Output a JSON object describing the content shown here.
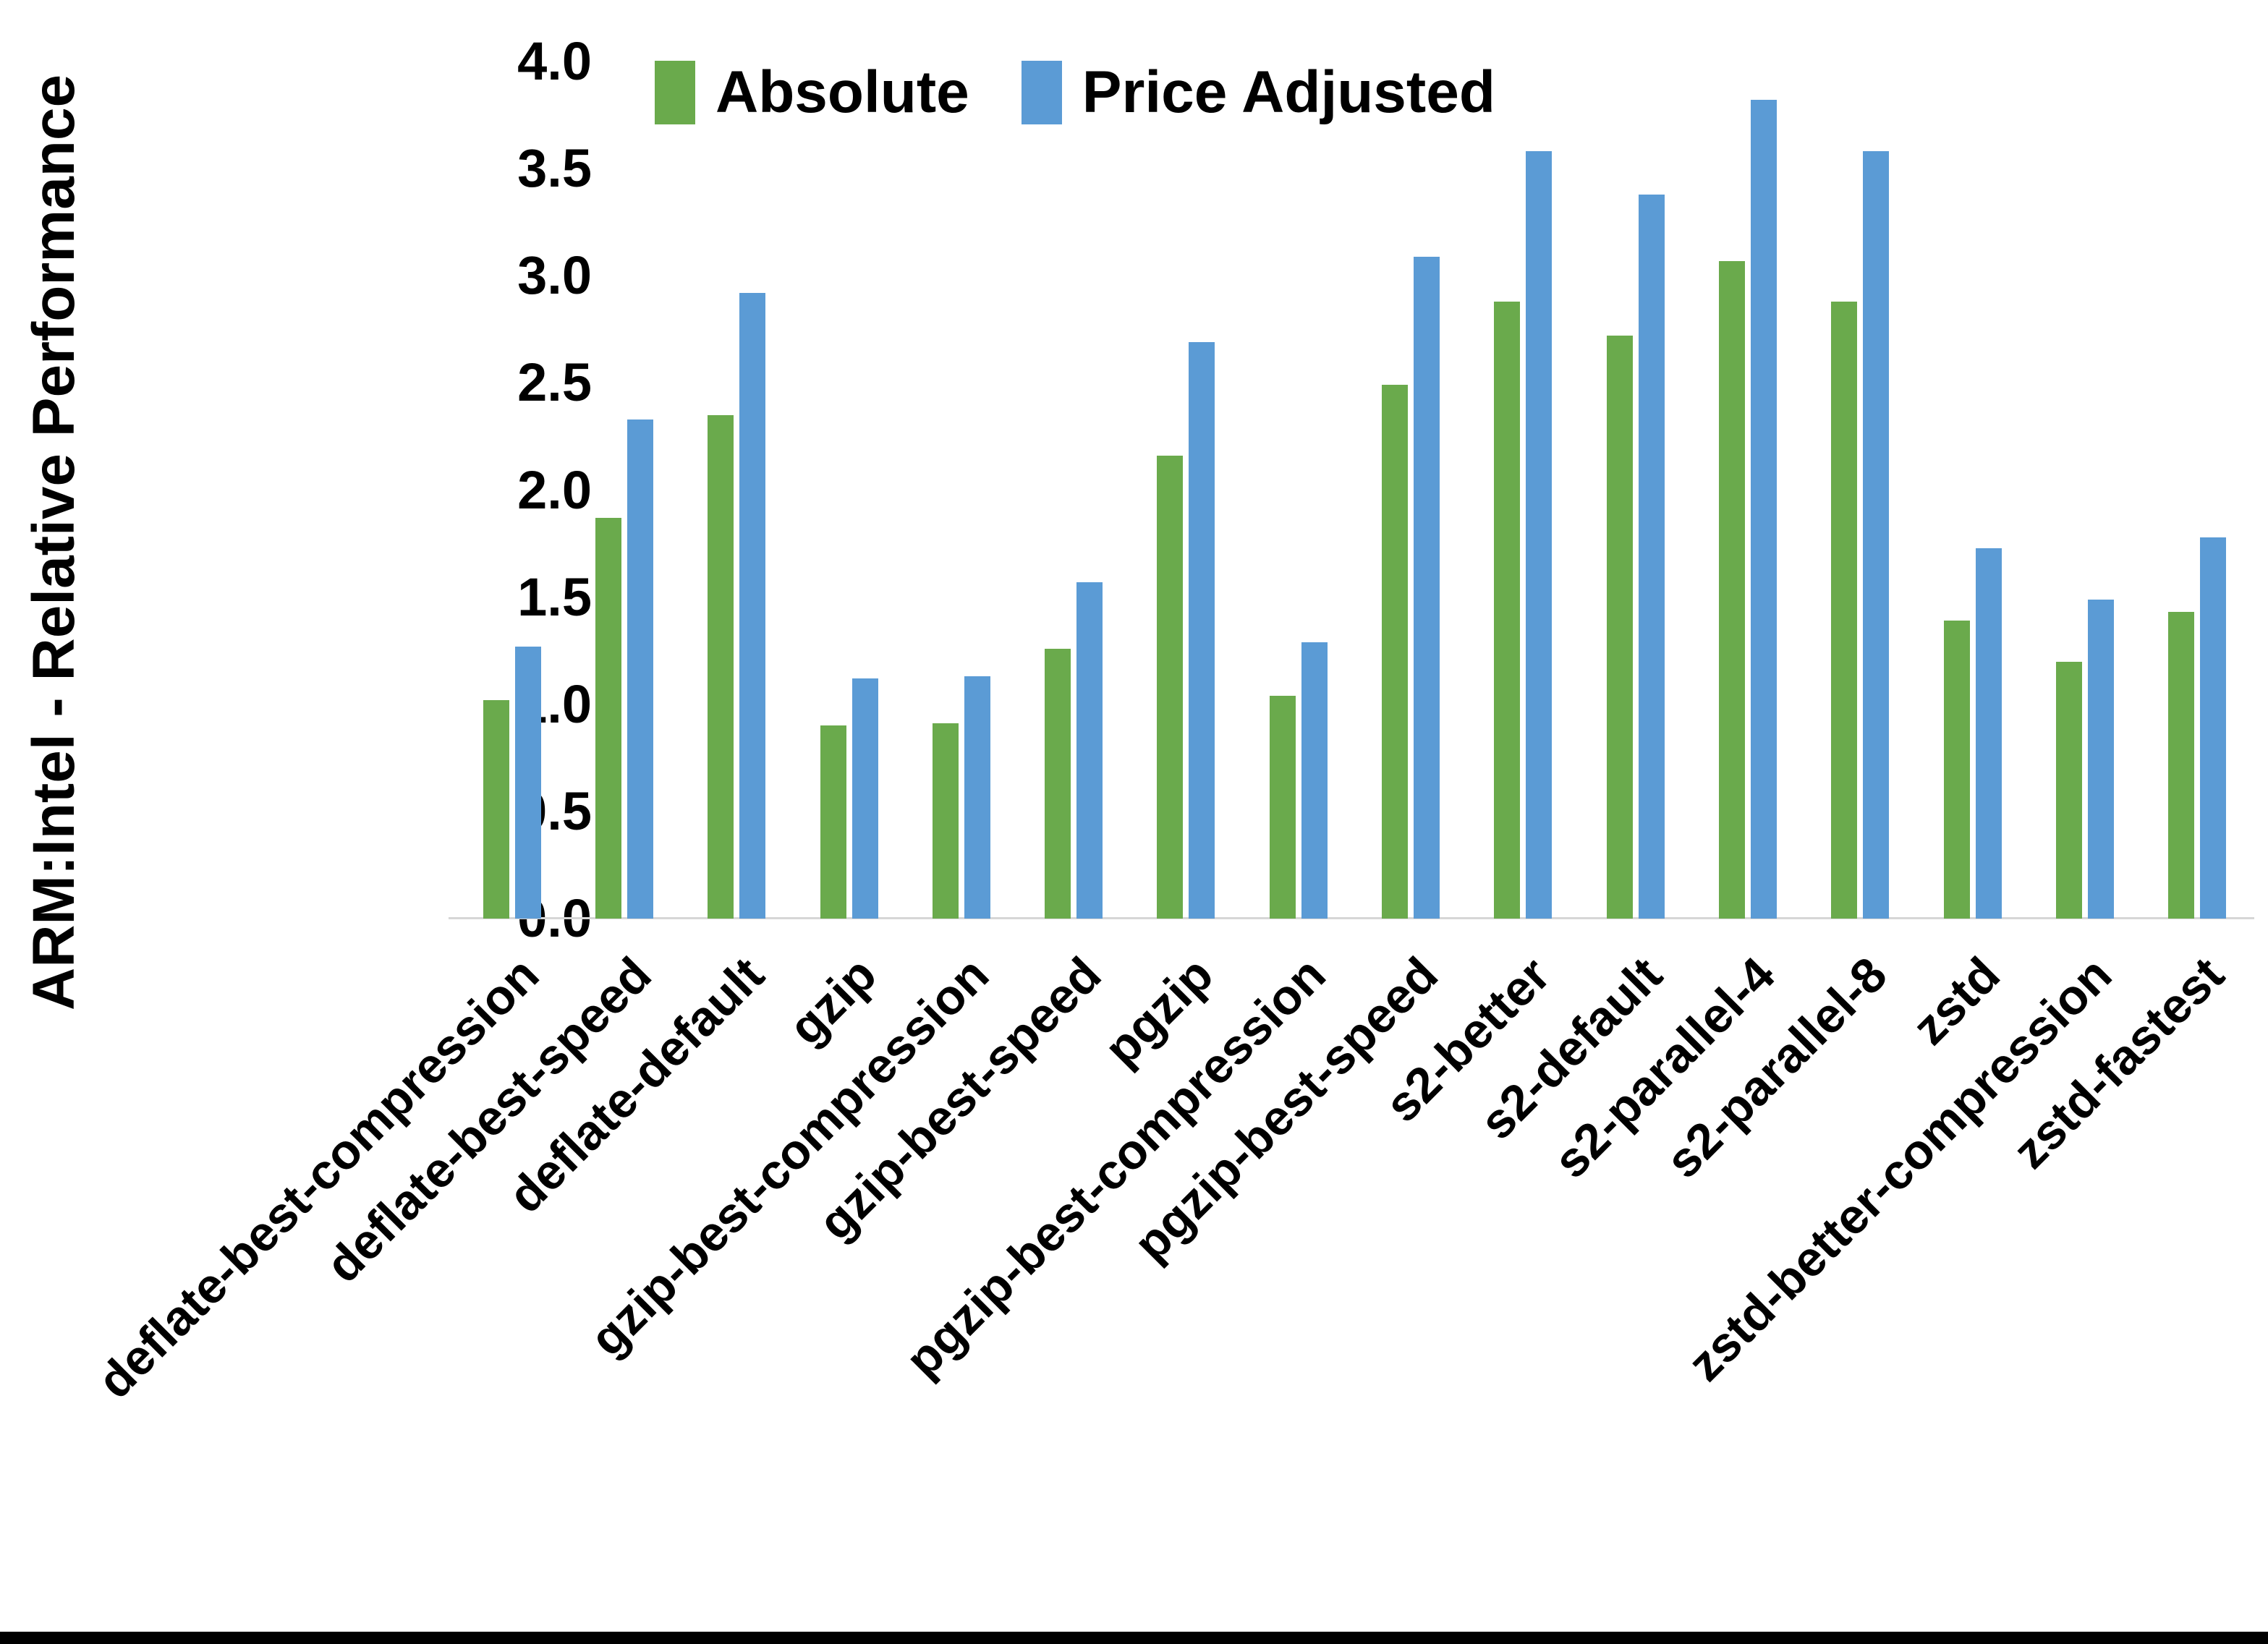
{
  "chart_data": {
    "type": "bar",
    "title": "",
    "ylabel": "ARM:Intel - Relative Performance",
    "xlabel": "",
    "ylim": [
      0.0,
      4.0
    ],
    "ytick_step": 0.5,
    "yticks": [
      "0.0",
      "0.5",
      "1.0",
      "1.5",
      "2.0",
      "2.5",
      "3.0",
      "3.5",
      "4.0"
    ],
    "grid": false,
    "legend_position": "top-center",
    "axis_line_color": "#d6d6d6",
    "text_color": "#000000",
    "categories": [
      "deflate-best-compression",
      "deflate-best-speed",
      "deflate-default",
      "gzip",
      "gzip-best-compression",
      "gzip-best-speed",
      "pgzip",
      "pgzip-best-compression",
      "pgzip-best-speed",
      "s2-better",
      "s2-default",
      "s2-parallel-4",
      "s2-parallel-8",
      "zstd",
      "zstd-better-compression",
      "zstd-fastest"
    ],
    "series": [
      {
        "name": "Absolute",
        "color": "#6AAA4C",
        "values": [
          1.02,
          1.87,
          2.35,
          0.9,
          0.91,
          1.26,
          2.16,
          1.04,
          2.49,
          2.88,
          2.72,
          3.07,
          2.88,
          1.39,
          1.2,
          1.43
        ]
      },
      {
        "name": "Price Adjusted",
        "color": "#5B9BD5",
        "values": [
          1.27,
          2.33,
          2.92,
          1.12,
          1.13,
          1.57,
          2.69,
          1.29,
          3.09,
          3.58,
          3.38,
          3.82,
          3.58,
          1.73,
          1.49,
          1.78
        ]
      }
    ]
  }
}
